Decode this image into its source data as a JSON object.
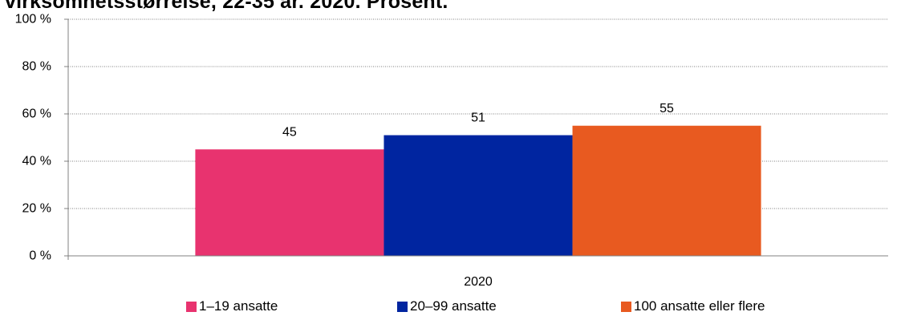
{
  "title": "virksomhetsstørrelse, 22-35 år. 2020. Prosent.",
  "chart_data": {
    "type": "bar",
    "categories": [
      "2020"
    ],
    "series": [
      {
        "name": "1–19 ansatte",
        "values": [
          45
        ],
        "color": "#e8336f"
      },
      {
        "name": "20–99 ansatte",
        "values": [
          51
        ],
        "color": "#0025a0"
      },
      {
        "name": "100 ansatte eller flere",
        "values": [
          55
        ],
        "color": "#e85a20"
      }
    ],
    "ylim": [
      0,
      100
    ],
    "yticks": [
      0,
      20,
      40,
      60,
      80,
      100
    ],
    "ytick_labels": [
      "0 %",
      "20 %",
      "40 %",
      "60 %",
      "80 %",
      "100 %"
    ],
    "grid": true,
    "legend": "bottom",
    "data_labels": true
  }
}
